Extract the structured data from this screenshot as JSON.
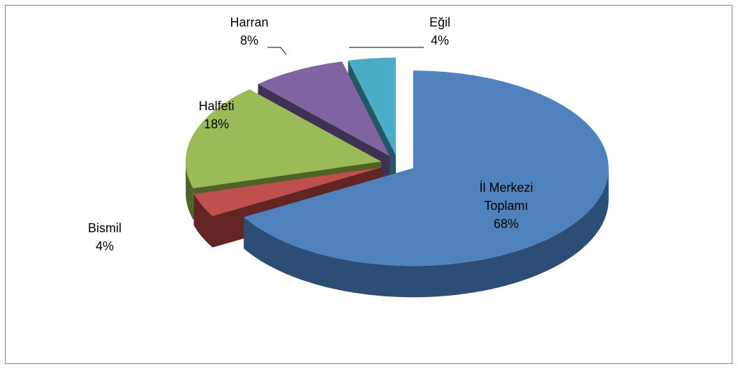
{
  "chart_data": {
    "type": "pie",
    "categories": [
      "İl Merkezi Toplamı",
      "Bismil",
      "Halfeti",
      "Harran",
      "Eğil"
    ],
    "values": [
      68,
      4,
      18,
      8,
      4
    ],
    "value_labels": [
      "68%",
      "4%",
      "18%",
      "8%",
      "4%"
    ],
    "colors": [
      "#4f81bd",
      "#c0504d",
      "#9bbb59",
      "#8064a2",
      "#4bacc6"
    ],
    "sides": [
      "#2c4d75",
      "#632523",
      "#4f6228",
      "#3f3151",
      "#215868"
    ]
  }
}
